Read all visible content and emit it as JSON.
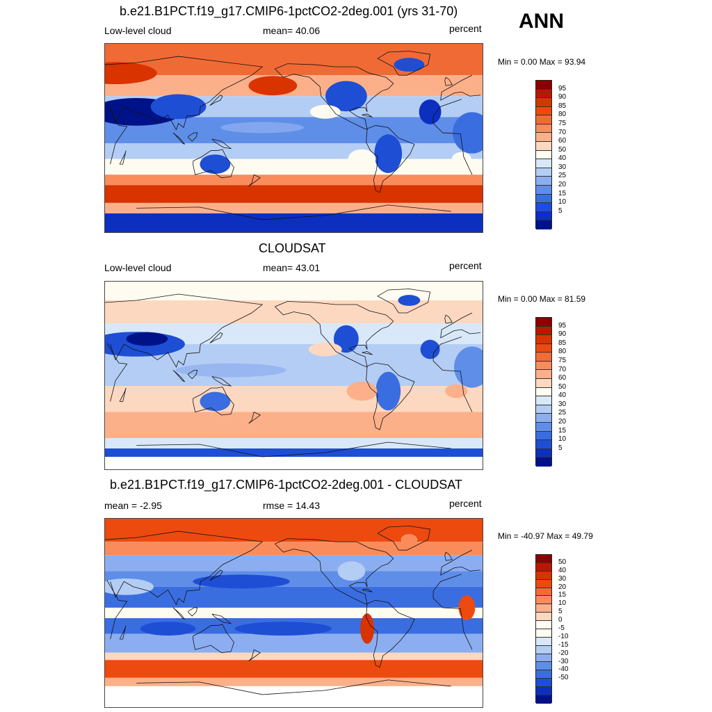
{
  "season": "ANN",
  "panels": [
    {
      "title": "b.e21.B1PCT.f19_g17.CMIP6-1pctCO2-2deg.001 (yrs 31-70)",
      "left_label": "Low-level cloud",
      "center_label": "mean=  40.06",
      "units": "percent",
      "minmax": "Min =    0.00 Max =  93.94",
      "field": "model",
      "colorbar": {
        "colors": [
          "#8b0000",
          "#b81800",
          "#d93300",
          "#ed4a10",
          "#f66a35",
          "#fa8c5c",
          "#fcb08a",
          "#fdd8c0",
          "#fefcf0",
          "#d8e8f8",
          "#b4cdf4",
          "#8caef0",
          "#5f8ee9",
          "#3a6ee0",
          "#1e4ed4",
          "#0c2fc0",
          "#00128a"
        ],
        "labels": [
          "95",
          "90",
          "85",
          "80",
          "75",
          "70",
          "60",
          "50",
          "40",
          "30",
          "25",
          "20",
          "15",
          "10",
          "5"
        ]
      }
    },
    {
      "title": "CLOUDSAT",
      "left_label": "Low-level cloud",
      "center_label": "mean=  43.01",
      "units": "percent",
      "minmax": "Min =    0.00 Max =  81.59",
      "field": "obs",
      "colorbar": {
        "colors": [
          "#8b0000",
          "#b81800",
          "#d93300",
          "#ed4a10",
          "#f66a35",
          "#fa8c5c",
          "#fcb08a",
          "#fdd8c0",
          "#fefcf0",
          "#d8e8f8",
          "#b4cdf4",
          "#8caef0",
          "#5f8ee9",
          "#3a6ee0",
          "#1e4ed4",
          "#0c2fc0",
          "#00128a"
        ],
        "labels": [
          "95",
          "90",
          "85",
          "80",
          "75",
          "70",
          "60",
          "50",
          "40",
          "30",
          "25",
          "20",
          "15",
          "10",
          "5"
        ]
      }
    },
    {
      "title": "b.e21.B1PCT.f19_g17.CMIP6-1pctCO2-2deg.001 - CLOUDSAT",
      "left_label": "mean =  -2.95",
      "center_label": "rmse =  14.43",
      "units": "percent",
      "minmax": "Min = -40.97 Max =  49.79",
      "field": "diff",
      "colorbar": {
        "colors": [
          "#8b0000",
          "#b81800",
          "#d93300",
          "#ed4a10",
          "#f66a35",
          "#fa8c5c",
          "#fcb08a",
          "#fdd8c0",
          "#fefcf0",
          "#fefcf0",
          "#d8e8f8",
          "#b4cdf4",
          "#8caef0",
          "#5f8ee9",
          "#3a6ee0",
          "#1e4ed4",
          "#0c2fc0",
          "#00128a"
        ],
        "labels": [
          "50",
          "40",
          "30",
          "20",
          "15",
          "10",
          "5",
          "0",
          "-5",
          "-10",
          "-15",
          "-20",
          "-30",
          "-40",
          "-50"
        ]
      }
    }
  ]
}
